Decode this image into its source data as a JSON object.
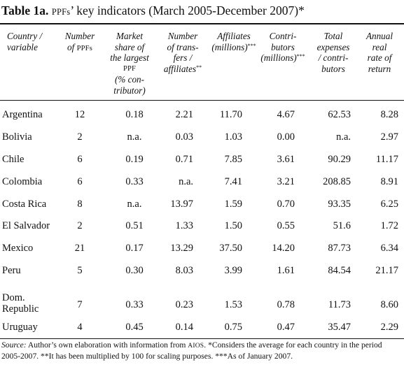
{
  "title": {
    "label": "Table 1a.",
    "acronym": "PPFs",
    "text": "’ key indicators (March 2005-December 2007)",
    "mark": "*"
  },
  "headers": {
    "country_line1": "Country /",
    "country_line2": "variable",
    "number_line1": "Number",
    "number_line2": "of",
    "number_acronym": "PPFs",
    "share_line1": "Market",
    "share_line2": "share of",
    "share_line3": "the largest",
    "share_acronym": "PPF",
    "share_line5": "(% con-",
    "share_line6": "tributor)",
    "transfers_line1": "Number",
    "transfers_line2": "of trans-",
    "transfers_line3": "fers /",
    "transfers_line4": "affiliates",
    "transfers_mark": "**",
    "affiliates_line1": "Affiliates",
    "affiliates_line2": "(millions)",
    "affiliates_mark": "***",
    "contrib_line1": "Contri-",
    "contrib_line2": "butors",
    "contrib_line3": "(millions)",
    "contrib_mark": "***",
    "expenses_line1": "Total",
    "expenses_line2": "expenses",
    "expenses_line3": "/ contri-",
    "expenses_line4": "butors",
    "return_line1": "Annual",
    "return_line2": "real",
    "return_line3": "rate of",
    "return_line4": "return"
  },
  "rows": [
    {
      "country": "Argentina",
      "country2": "",
      "number": "12",
      "share": "0.18",
      "transfers": "2.21",
      "affiliates": "11.70",
      "contributors": "4.67",
      "expenses": "62.53",
      "return": "8.28"
    },
    {
      "country": "Bolivia",
      "country2": "",
      "number": "2",
      "share": "n.a.",
      "transfers": "0.03",
      "affiliates": "1.03",
      "contributors": "0.00",
      "expenses": "n.a.",
      "return": "2.97"
    },
    {
      "country": "Chile",
      "country2": "",
      "number": "6",
      "share": "0.19",
      "transfers": "0.71",
      "affiliates": "7.85",
      "contributors": "3.61",
      "expenses": "90.29",
      "return": "11.17"
    },
    {
      "country": "Colombia",
      "country2": "",
      "number": "6",
      "share": "0.33",
      "transfers": "n.a.",
      "affiliates": "7.41",
      "contributors": "3.21",
      "expenses": "208.85",
      "return": "8.91"
    },
    {
      "country": "Costa Rica",
      "country2": "",
      "number": "8",
      "share": "n.a.",
      "transfers": "13.97",
      "affiliates": "1.59",
      "contributors": "0.70",
      "expenses": "93.35",
      "return": "6.25"
    },
    {
      "country": "El Salvador",
      "country2": "",
      "number": "2",
      "share": "0.51",
      "transfers": "1.33",
      "affiliates": "1.50",
      "contributors": "0.55",
      "expenses": "51.6",
      "return": "1.72"
    },
    {
      "country": "Mexico",
      "country2": "",
      "number": "21",
      "share": "0.17",
      "transfers": "13.29",
      "affiliates": "37.50",
      "contributors": "14.20",
      "expenses": "87.73",
      "return": "6.34"
    },
    {
      "country": "Peru",
      "country2": "",
      "number": "5",
      "share": "0.30",
      "transfers": "8.03",
      "affiliates": "3.99",
      "contributors": "1.61",
      "expenses": "84.54",
      "return": "21.17"
    },
    {
      "country": "Dom.",
      "country2": "Republic",
      "number": "7",
      "share": "0.33",
      "transfers": "0.23",
      "affiliates": "1.53",
      "contributors": "0.78",
      "expenses": "11.73",
      "return": "8.60"
    },
    {
      "country": "Uruguay",
      "country2": "",
      "number": "4",
      "share": "0.45",
      "transfers": "0.14",
      "affiliates": "0.75",
      "contributors": "0.47",
      "expenses": "35.47",
      "return": "2.29"
    }
  ],
  "source": {
    "label": "Source:",
    "text_before": " Author’s own elaboration with information from ",
    "acronym": "AIOS",
    "text_after": ". *Considers the average for each country in the period 2005-2007. **It has been multiplied by 100 for scaling purposes. ***As of January 2007."
  }
}
